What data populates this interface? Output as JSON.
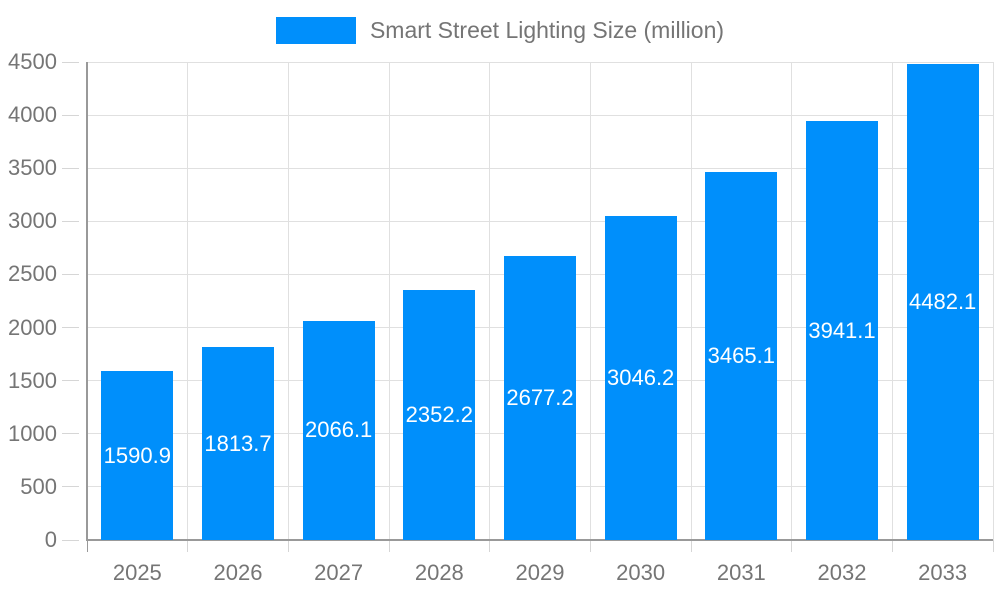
{
  "legend": {
    "label": "Smart Street Lighting Size (million)"
  },
  "chart_data": {
    "type": "bar",
    "title": "Smart Street Lighting Size (million)",
    "categories": [
      "2025",
      "2026",
      "2027",
      "2028",
      "2029",
      "2030",
      "2031",
      "2032",
      "2033"
    ],
    "values": [
      1590.9,
      1813.7,
      2066.1,
      2352.2,
      2677.2,
      3046.2,
      3465.1,
      3941.1,
      4482.1
    ],
    "value_labels": [
      "1590.9",
      "1813.7",
      "2066.1",
      "2352.2",
      "2677.2",
      "3046.2",
      "3465.1",
      "3941.1",
      "4482.1"
    ],
    "xlabel": "",
    "ylabel": "",
    "ylim": [
      0,
      4500
    ],
    "ytick_step": 500,
    "ytick_labels": [
      "0",
      "500",
      "1000",
      "1500",
      "2000",
      "2500",
      "3000",
      "3500",
      "4000",
      "4500"
    ],
    "grid": true,
    "legend_position": "top",
    "colors": {
      "bar": "#008ffb",
      "value_label": "#ffffff",
      "axis_text": "#757575",
      "grid_line": "#e0e0e0",
      "axis_line": "#999999",
      "tick": "#d6d6d6"
    }
  }
}
